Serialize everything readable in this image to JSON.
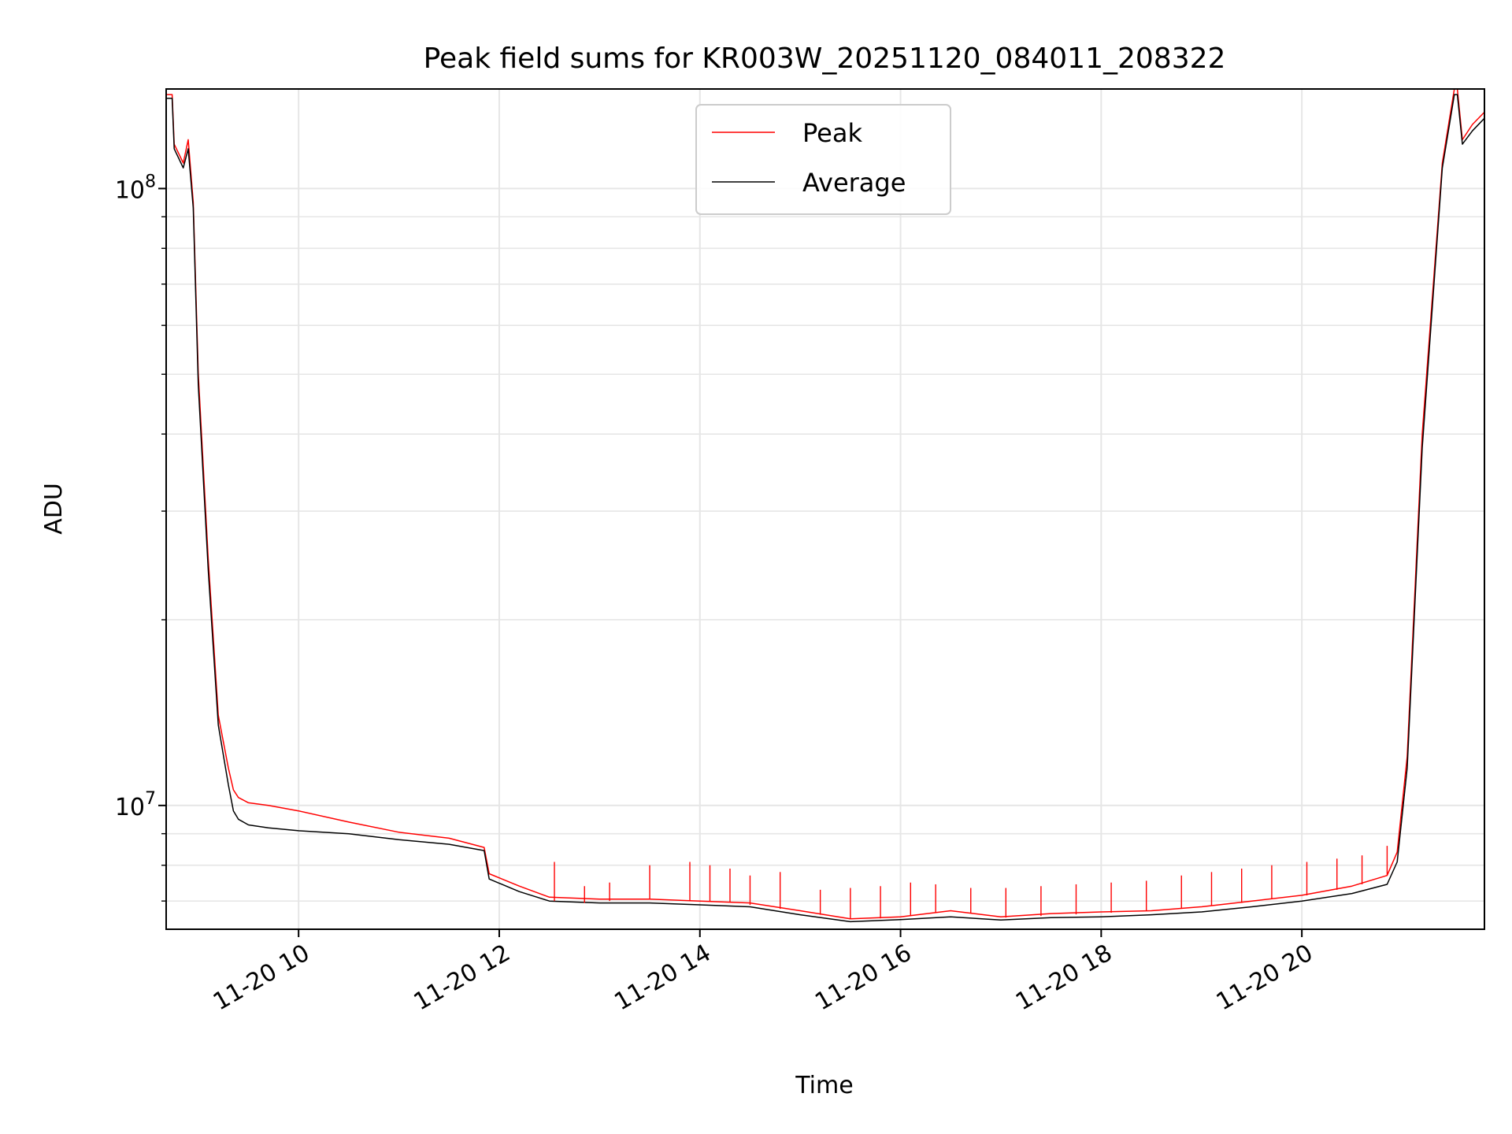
{
  "chart_data": {
    "type": "line",
    "title": "Peak field sums for KR003W_20251120_084011_208322",
    "xlabel": "Time",
    "ylabel": "ADU",
    "yscale": "log",
    "ylim": [
      6300000,
      145000000
    ],
    "xlim": [
      8.68,
      21.82
    ],
    "x_unit": "hours on 2025-11-20",
    "x_ticks": [
      {
        "x": 10,
        "label": "11-20 10"
      },
      {
        "x": 12,
        "label": "11-20 12"
      },
      {
        "x": 14,
        "label": "11-20 14"
      },
      {
        "x": 16,
        "label": "11-20 16"
      },
      {
        "x": 18,
        "label": "11-20 18"
      },
      {
        "x": 20,
        "label": "11-20 20"
      }
    ],
    "y_major_ticks": [
      {
        "value": 10000000,
        "base": "10",
        "exp": "7"
      },
      {
        "value": 100000000,
        "base": "10",
        "exp": "8"
      }
    ],
    "grid": "major and minor",
    "legend": {
      "position": "upper-center",
      "entries": [
        "Peak",
        "Average"
      ]
    },
    "series": [
      {
        "name": "Peak",
        "color": "#ff0000",
        "x": [
          8.68,
          8.74,
          8.76,
          8.85,
          8.9,
          8.95,
          9.0,
          9.1,
          9.2,
          9.3,
          9.35,
          9.4,
          9.5,
          9.7,
          10.0,
          10.5,
          11.0,
          11.5,
          11.85,
          11.9,
          12.2,
          12.5,
          13.0,
          13.5,
          14.0,
          14.5,
          15.0,
          15.5,
          16.0,
          16.5,
          17.0,
          17.5,
          18.0,
          18.5,
          19.0,
          19.5,
          20.0,
          20.5,
          20.85,
          20.95,
          21.05,
          21.2,
          21.4,
          21.52,
          21.55,
          21.6,
          21.7,
          21.82
        ],
        "y": [
          142000000,
          142000000,
          118000000,
          110000000,
          120000000,
          95000000,
          50000000,
          25000000,
          14000000,
          11500000,
          10600000,
          10300000,
          10100000,
          10000000,
          9800000,
          9400000,
          9050000,
          8850000,
          8550000,
          7750000,
          7400000,
          7100000,
          7050000,
          7050000,
          7000000,
          6950000,
          6750000,
          6550000,
          6600000,
          6750000,
          6600000,
          6680000,
          6720000,
          6750000,
          6850000,
          7000000,
          7150000,
          7400000,
          7700000,
          8400000,
          12000000,
          40000000,
          110000000,
          145000000,
          145000000,
          120000000,
          127000000,
          133000000
        ]
      },
      {
        "name": "Average",
        "color": "#000000",
        "x": [
          8.68,
          8.74,
          8.76,
          8.85,
          8.9,
          8.95,
          9.0,
          9.1,
          9.2,
          9.3,
          9.35,
          9.4,
          9.5,
          9.7,
          10.0,
          10.5,
          11.0,
          11.5,
          11.85,
          11.9,
          12.2,
          12.5,
          13.0,
          13.5,
          14.0,
          14.5,
          15.0,
          15.5,
          16.0,
          16.5,
          17.0,
          17.5,
          18.0,
          18.5,
          19.0,
          19.5,
          20.0,
          20.5,
          20.85,
          20.95,
          21.05,
          21.2,
          21.4,
          21.52,
          21.55,
          21.6,
          21.7,
          21.82
        ],
        "y": [
          140000000,
          140000000,
          116000000,
          108000000,
          116000000,
          93000000,
          48000000,
          24000000,
          13500000,
          10800000,
          9800000,
          9500000,
          9300000,
          9200000,
          9100000,
          9000000,
          8800000,
          8650000,
          8450000,
          7600000,
          7250000,
          7000000,
          6950000,
          6950000,
          6900000,
          6850000,
          6650000,
          6480000,
          6530000,
          6600000,
          6520000,
          6580000,
          6600000,
          6650000,
          6720000,
          6850000,
          7000000,
          7200000,
          7450000,
          8100000,
          11500000,
          38000000,
          108000000,
          142000000,
          142000000,
          118000000,
          124000000,
          130000000
        ]
      }
    ],
    "spikes": [
      {
        "x": 12.55,
        "peak": 8100000,
        "avg": 7000000
      },
      {
        "x": 12.85,
        "peak": 7400000,
        "avg": 6950000
      },
      {
        "x": 13.1,
        "peak": 7500000,
        "avg": 7000000
      },
      {
        "x": 13.5,
        "peak": 8000000,
        "avg": 7050000
      },
      {
        "x": 13.9,
        "peak": 8100000,
        "avg": 7000000
      },
      {
        "x": 14.1,
        "peak": 8000000,
        "avg": 7000000
      },
      {
        "x": 14.3,
        "peak": 7900000,
        "avg": 6980000
      },
      {
        "x": 14.5,
        "peak": 7700000,
        "avg": 6900000
      },
      {
        "x": 14.8,
        "peak": 7800000,
        "avg": 6800000
      },
      {
        "x": 15.2,
        "peak": 7300000,
        "avg": 6650000
      },
      {
        "x": 15.5,
        "peak": 7350000,
        "avg": 6550000
      },
      {
        "x": 15.8,
        "peak": 7400000,
        "avg": 6560000
      },
      {
        "x": 16.1,
        "peak": 7500000,
        "avg": 6620000
      },
      {
        "x": 16.35,
        "peak": 7450000,
        "avg": 6700000
      },
      {
        "x": 16.7,
        "peak": 7350000,
        "avg": 6680000
      },
      {
        "x": 17.05,
        "peak": 7350000,
        "avg": 6580000
      },
      {
        "x": 17.4,
        "peak": 7400000,
        "avg": 6620000
      },
      {
        "x": 17.75,
        "peak": 7450000,
        "avg": 6660000
      },
      {
        "x": 18.1,
        "peak": 7500000,
        "avg": 6700000
      },
      {
        "x": 18.45,
        "peak": 7550000,
        "avg": 6740000
      },
      {
        "x": 18.8,
        "peak": 7700000,
        "avg": 6800000
      },
      {
        "x": 19.1,
        "peak": 7800000,
        "avg": 6880000
      },
      {
        "x": 19.4,
        "peak": 7900000,
        "avg": 6950000
      },
      {
        "x": 19.7,
        "peak": 8000000,
        "avg": 7050000
      },
      {
        "x": 20.05,
        "peak": 8100000,
        "avg": 7150000
      },
      {
        "x": 20.35,
        "peak": 8200000,
        "avg": 7300000
      },
      {
        "x": 20.6,
        "peak": 8300000,
        "avg": 7450000
      },
      {
        "x": 20.85,
        "peak": 8600000,
        "avg": 7700000
      }
    ]
  }
}
